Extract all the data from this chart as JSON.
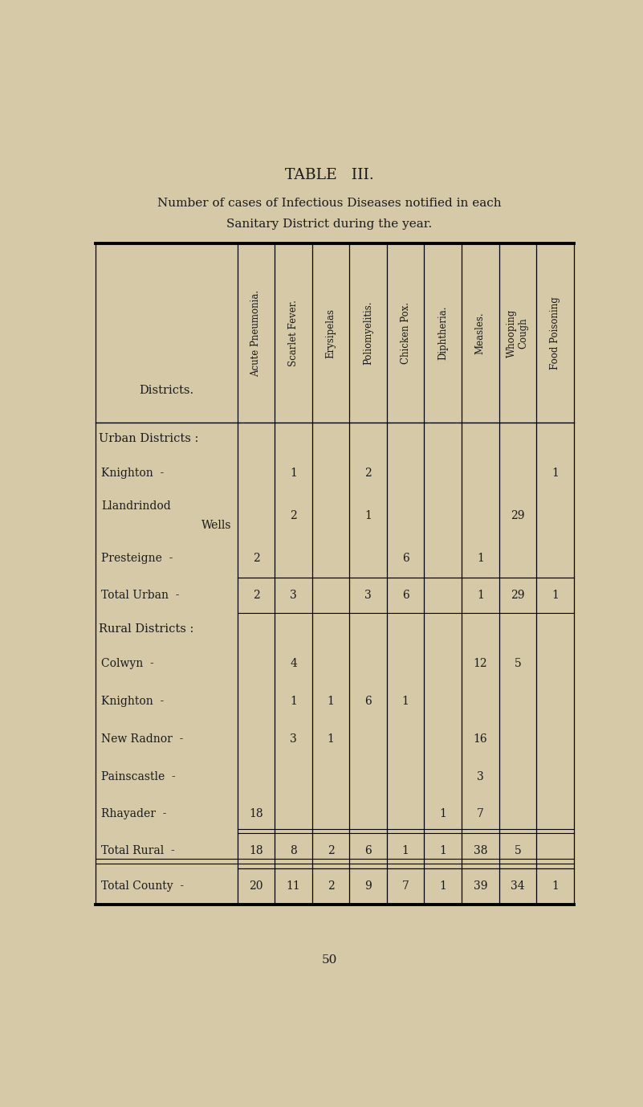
{
  "title1": "TABLE   III.",
  "title2": "Number of cases of Infectious Diseases notified in each",
  "title3": "Sanitary District during the year.",
  "page_number": "50",
  "bg_color": "#d6c9a8",
  "text_color": "#1a1a1a",
  "columns": [
    "Acute Pneumonia.",
    "Scarlet Fever.",
    "Erysipelas",
    "Poliomyelitis.",
    "Chicken Pox.",
    "Diphtheria.",
    "Measles.",
    "Whooping\nCough",
    "Food Poisoning"
  ],
  "rows": [
    {
      "label": "Urban Districts :",
      "is_header": true,
      "dash": false,
      "is_total": false,
      "values": [
        "",
        "",
        "",
        "",
        "",
        "",
        "",
        "",
        ""
      ]
    },
    {
      "label": "Knighton",
      "is_header": false,
      "dash": true,
      "is_total": false,
      "values": [
        "",
        "1",
        "",
        "2",
        "",
        "",
        "",
        "",
        "1"
      ]
    },
    {
      "label": "Llandrindod",
      "is_header": false,
      "dash": false,
      "is_total": false,
      "two_line": true,
      "line2": "Wells",
      "values": [
        "",
        "2",
        "",
        "1",
        "",
        "",
        "",
        "29",
        ""
      ]
    },
    {
      "label": "Presteigne",
      "is_header": false,
      "dash": true,
      "is_total": false,
      "values": [
        "2",
        "",
        "",
        "",
        "6",
        "",
        "1",
        "",
        ""
      ]
    },
    {
      "label": "Total Urban",
      "is_header": false,
      "dash": true,
      "is_total": true,
      "values": [
        "2",
        "3",
        "",
        "3",
        "6",
        "",
        "1",
        "29",
        "1"
      ]
    },
    {
      "label": "Rural Districts :",
      "is_header": true,
      "dash": false,
      "is_total": false,
      "values": [
        "",
        "",
        "",
        "",
        "",
        "",
        "",
        "",
        ""
      ]
    },
    {
      "label": "Colwyn",
      "is_header": false,
      "dash": true,
      "is_total": false,
      "values": [
        "",
        "4",
        "",
        "",
        "",
        "",
        "12",
        "5",
        ""
      ]
    },
    {
      "label": "Knighton",
      "is_header": false,
      "dash": true,
      "is_total": false,
      "values": [
        "",
        "1",
        "1",
        "6",
        "1",
        "",
        "",
        "",
        ""
      ]
    },
    {
      "label": "New Radnor",
      "is_header": false,
      "dash": true,
      "is_total": false,
      "values": [
        "",
        "3",
        "1",
        "",
        "",
        "",
        "16",
        "",
        ""
      ]
    },
    {
      "label": "Painscastle",
      "is_header": false,
      "dash": true,
      "is_total": false,
      "values": [
        "",
        "",
        "",
        "",
        "",
        "",
        "3",
        "",
        ""
      ]
    },
    {
      "label": "Rhayader",
      "is_header": false,
      "dash": true,
      "is_total": false,
      "values": [
        "18",
        "",
        "",
        "",
        "",
        "1",
        "7",
        "",
        ""
      ]
    },
    {
      "label": "Total Rural",
      "is_header": false,
      "dash": true,
      "is_total": true,
      "values": [
        "18",
        "8",
        "2",
        "6",
        "1",
        "1",
        "38",
        "5",
        ""
      ]
    },
    {
      "label": "Total County",
      "is_header": false,
      "dash": true,
      "is_total": true,
      "values": [
        "20",
        "11",
        "2",
        "9",
        "7",
        "1",
        "39",
        "34",
        "1"
      ]
    }
  ]
}
